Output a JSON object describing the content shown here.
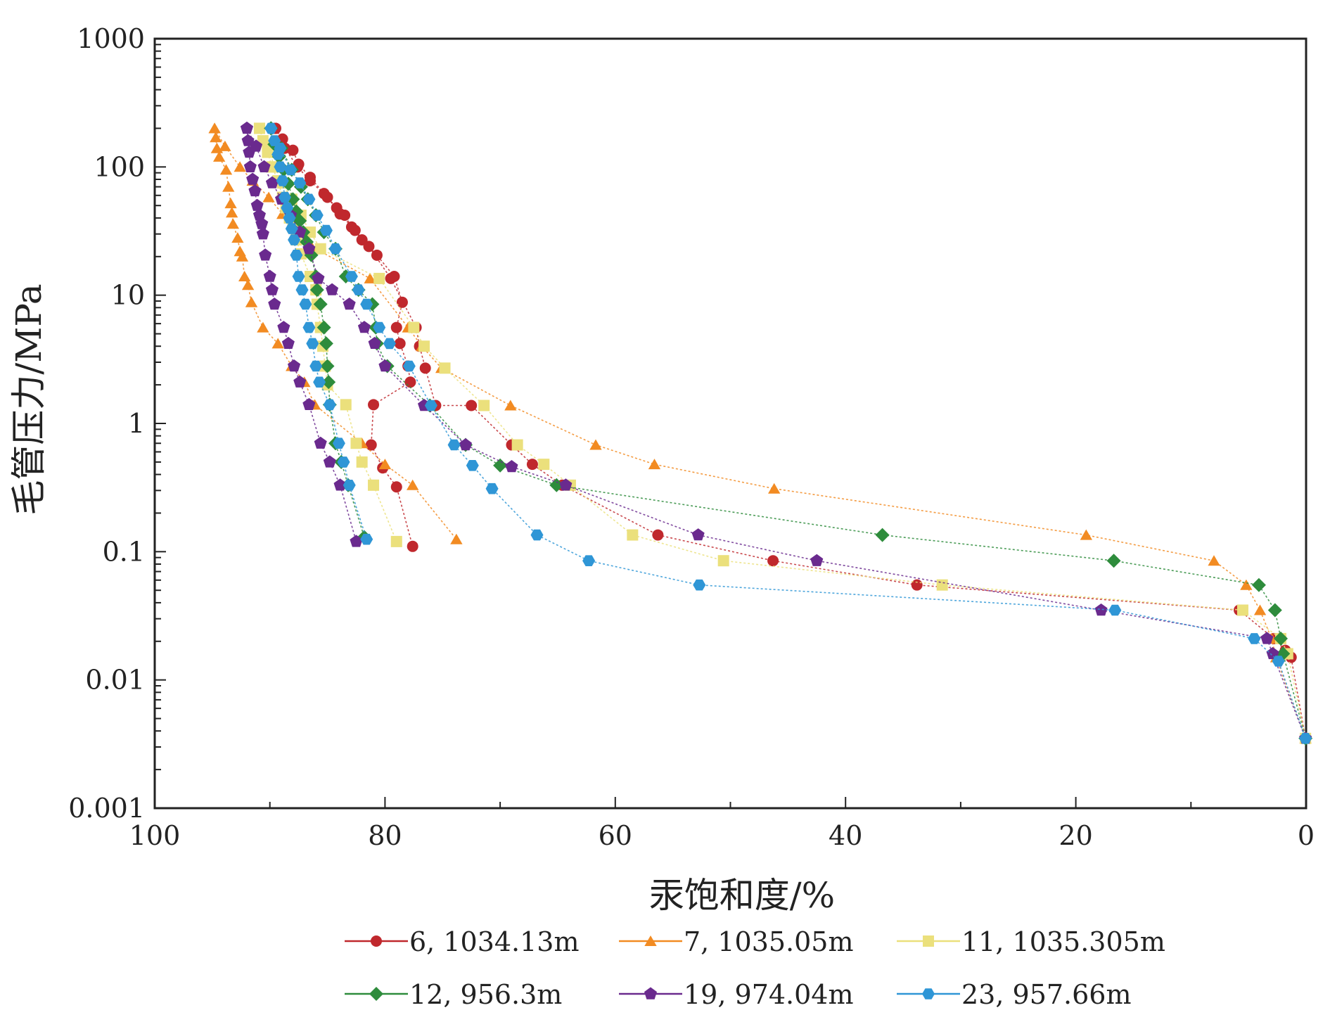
{
  "chart_data": {
    "type": "line",
    "xlabel": "汞饱和度/%",
    "ylabel": "毛管压力/MPa",
    "xlim": [
      100,
      0
    ],
    "x_reversed": true,
    "ylim": [
      0.001,
      1000
    ],
    "y_scale": "log",
    "x_ticks": [
      "100",
      "80",
      "60",
      "40",
      "20",
      "0"
    ],
    "y_ticks": [
      "1000",
      "100",
      "10",
      "1",
      "0.1",
      "0.01",
      "0.001"
    ],
    "grid": false,
    "legend_position": "bottom",
    "series": [
      {
        "name": "6, 1034.13m",
        "color": "#c0282d",
        "marker": "circle",
        "intrusion": [
          [
            89.5,
            200
          ],
          [
            88.9,
            165
          ],
          [
            88.0,
            135
          ],
          [
            87.5,
            105
          ],
          [
            86.5,
            83
          ],
          [
            85.3,
            62
          ],
          [
            84.2,
            48
          ],
          [
            83.5,
            42
          ],
          [
            82.9,
            34
          ],
          [
            82.0,
            27
          ],
          [
            80.7,
            20.5
          ],
          [
            79.2,
            14
          ],
          [
            78.5,
            8.8
          ],
          [
            79.0,
            5.6
          ],
          [
            78.7,
            4.2
          ],
          [
            78.0,
            2.8
          ],
          [
            77.8,
            2.1
          ],
          [
            81.0,
            1.4
          ],
          [
            81.2,
            0.68
          ],
          [
            80.2,
            0.45
          ],
          [
            79.0,
            0.32
          ],
          [
            77.6,
            0.11
          ]
        ],
        "extrusion": [
          [
            89.5,
            200
          ],
          [
            88.7,
            140
          ],
          [
            87.6,
            100
          ],
          [
            86.5,
            78
          ],
          [
            85.0,
            58
          ],
          [
            83.9,
            43
          ],
          [
            82.6,
            32
          ],
          [
            81.4,
            24
          ],
          [
            79.5,
            13.5
          ],
          [
            77.3,
            5.6
          ],
          [
            77.0,
            4.0
          ],
          [
            76.5,
            2.7
          ],
          [
            75.6,
            1.38
          ],
          [
            72.5,
            1.38
          ],
          [
            69.0,
            0.68
          ],
          [
            67.2,
            0.48
          ],
          [
            64.6,
            0.33
          ],
          [
            56.3,
            0.135
          ],
          [
            46.3,
            0.085
          ],
          [
            33.8,
            0.055
          ],
          [
            5.8,
            0.035
          ],
          [
            2.8,
            0.021
          ],
          [
            1.8,
            0.017
          ],
          [
            1.3,
            0.015
          ],
          [
            0.05,
            0.0035
          ]
        ]
      },
      {
        "name": "7, 1035.05m",
        "color": "#f28b22",
        "marker": "triangle",
        "intrusion": [
          [
            94.8,
            200
          ],
          [
            94.7,
            170
          ],
          [
            94.6,
            140
          ],
          [
            94.4,
            120
          ],
          [
            93.8,
            95
          ],
          [
            93.6,
            70
          ],
          [
            93.4,
            52
          ],
          [
            93.3,
            44
          ],
          [
            93.2,
            36
          ],
          [
            92.8,
            28
          ],
          [
            92.6,
            22
          ],
          [
            92.4,
            20
          ],
          [
            92.2,
            14
          ],
          [
            91.9,
            12
          ],
          [
            91.6,
            8.8
          ],
          [
            90.6,
            5.6
          ],
          [
            89.3,
            4.2
          ],
          [
            88.1,
            2.8
          ],
          [
            87.0,
            2.1
          ],
          [
            86.1,
            1.4
          ],
          [
            82.0,
            0.7
          ],
          [
            80.0,
            0.48
          ],
          [
            77.6,
            0.33
          ],
          [
            73.8,
            0.125
          ]
        ],
        "extrusion": [
          [
            94.8,
            200
          ],
          [
            93.9,
            145
          ],
          [
            92.6,
            100
          ],
          [
            91.5,
            78
          ],
          [
            90.1,
            58
          ],
          [
            88.9,
            43
          ],
          [
            87.7,
            32
          ],
          [
            86.4,
            24
          ],
          [
            81.3,
            13.5
          ],
          [
            78.0,
            5.6
          ],
          [
            76.8,
            4.0
          ],
          [
            75.1,
            2.7
          ],
          [
            69.1,
            1.38
          ],
          [
            61.7,
            0.68
          ],
          [
            56.6,
            0.48
          ],
          [
            46.2,
            0.31
          ],
          [
            19.1,
            0.135
          ],
          [
            8.0,
            0.085
          ],
          [
            5.2,
            0.055
          ],
          [
            4.0,
            0.035
          ],
          [
            3.0,
            0.021
          ],
          [
            2.6,
            0.015
          ],
          [
            0.05,
            0.0035
          ]
        ]
      },
      {
        "name": "11, 1035.305m",
        "color": "#ebe07c",
        "marker": "square",
        "intrusion": [
          [
            90.9,
            200
          ],
          [
            90.6,
            160
          ],
          [
            90.2,
            130
          ],
          [
            89.8,
            100
          ],
          [
            89.3,
            78
          ],
          [
            88.9,
            58
          ],
          [
            88.6,
            48
          ],
          [
            88.3,
            40
          ],
          [
            88.0,
            34
          ],
          [
            87.7,
            27
          ],
          [
            87.3,
            21
          ],
          [
            86.5,
            14
          ],
          [
            86.0,
            11
          ],
          [
            85.9,
            8.5
          ],
          [
            85.6,
            5.6
          ],
          [
            85.4,
            4.0
          ],
          [
            85.2,
            2.8
          ],
          [
            85.0,
            2.0
          ],
          [
            83.4,
            1.4
          ],
          [
            82.5,
            0.7
          ],
          [
            82.0,
            0.5
          ],
          [
            81.0,
            0.33
          ],
          [
            79.0,
            0.12
          ]
        ],
        "extrusion": [
          [
            90.9,
            200
          ],
          [
            90.2,
            145
          ],
          [
            89.6,
            100
          ],
          [
            88.9,
            75
          ],
          [
            88.1,
            56
          ],
          [
            87.3,
            42
          ],
          [
            86.5,
            31
          ],
          [
            85.6,
            23
          ],
          [
            80.5,
            13.5
          ],
          [
            77.5,
            5.6
          ],
          [
            76.6,
            4.0
          ],
          [
            74.8,
            2.7
          ],
          [
            71.4,
            1.38
          ],
          [
            68.5,
            0.68
          ],
          [
            66.2,
            0.48
          ],
          [
            63.9,
            0.33
          ],
          [
            58.5,
            0.135
          ],
          [
            50.6,
            0.085
          ],
          [
            31.6,
            0.055
          ],
          [
            5.5,
            0.035
          ],
          [
            2.2,
            0.021
          ],
          [
            1.6,
            0.016
          ],
          [
            0.05,
            0.0035
          ]
        ]
      },
      {
        "name": "12, 956.3m",
        "color": "#2e8c3c",
        "marker": "diamond",
        "intrusion": [
          [
            89.9,
            200
          ],
          [
            89.6,
            150
          ],
          [
            89.2,
            120
          ],
          [
            88.8,
            95
          ],
          [
            88.4,
            74
          ],
          [
            88.0,
            56
          ],
          [
            87.7,
            45
          ],
          [
            87.4,
            38
          ],
          [
            87.1,
            31
          ],
          [
            86.8,
            26
          ],
          [
            86.4,
            20.5
          ],
          [
            86.0,
            14
          ],
          [
            85.9,
            11
          ],
          [
            85.6,
            8.5
          ],
          [
            85.3,
            5.6
          ],
          [
            85.1,
            4.2
          ],
          [
            85.0,
            2.8
          ],
          [
            84.9,
            2.1
          ],
          [
            84.8,
            1.4
          ],
          [
            84.3,
            0.7
          ],
          [
            83.8,
            0.5
          ],
          [
            83.2,
            0.33
          ],
          [
            81.8,
            0.13
          ]
        ],
        "extrusion": [
          [
            89.9,
            200
          ],
          [
            89.0,
            140
          ],
          [
            88.1,
            95
          ],
          [
            87.3,
            70
          ],
          [
            86.7,
            56
          ],
          [
            86.0,
            42
          ],
          [
            85.3,
            31
          ],
          [
            84.3,
            23
          ],
          [
            83.4,
            14
          ],
          [
            82.3,
            11
          ],
          [
            81.1,
            8.5
          ],
          [
            80.8,
            5.6
          ],
          [
            80.7,
            4.2
          ],
          [
            79.8,
            2.8
          ],
          [
            76.1,
            1.38
          ],
          [
            73.0,
            0.68
          ],
          [
            70.0,
            0.47
          ],
          [
            65.1,
            0.33
          ],
          [
            36.8,
            0.135
          ],
          [
            16.7,
            0.085
          ],
          [
            4.1,
            0.055
          ],
          [
            2.7,
            0.035
          ],
          [
            2.2,
            0.021
          ],
          [
            2.0,
            0.016
          ],
          [
            0.05,
            0.0035
          ]
        ]
      },
      {
        "name": "19, 974.04m",
        "color": "#6a2a8e",
        "marker": "pentagon",
        "intrusion": [
          [
            92.0,
            200
          ],
          [
            91.9,
            160
          ],
          [
            91.8,
            130
          ],
          [
            91.7,
            100
          ],
          [
            91.5,
            80
          ],
          [
            91.3,
            65
          ],
          [
            91.1,
            50
          ],
          [
            90.9,
            42
          ],
          [
            90.7,
            36
          ],
          [
            90.6,
            30
          ],
          [
            90.4,
            20.5
          ],
          [
            90.0,
            14
          ],
          [
            89.8,
            11
          ],
          [
            89.6,
            8.5
          ],
          [
            88.8,
            5.6
          ],
          [
            88.4,
            4.2
          ],
          [
            87.9,
            2.8
          ],
          [
            87.4,
            2.1
          ],
          [
            86.6,
            1.4
          ],
          [
            85.6,
            0.7
          ],
          [
            84.8,
            0.5
          ],
          [
            83.9,
            0.33
          ],
          [
            82.5,
            0.12
          ]
        ],
        "extrusion": [
          [
            92.0,
            200
          ],
          [
            91.2,
            145
          ],
          [
            90.5,
            100
          ],
          [
            89.8,
            75
          ],
          [
            89.0,
            56
          ],
          [
            88.2,
            42
          ],
          [
            87.4,
            31
          ],
          [
            86.6,
            23
          ],
          [
            85.8,
            13.5
          ],
          [
            84.6,
            11
          ],
          [
            83.1,
            8.5
          ],
          [
            81.8,
            5.6
          ],
          [
            80.9,
            4.2
          ],
          [
            80.0,
            2.8
          ],
          [
            76.6,
            1.38
          ],
          [
            73.0,
            0.68
          ],
          [
            69.0,
            0.46
          ],
          [
            64.3,
            0.33
          ],
          [
            52.8,
            0.135
          ],
          [
            42.5,
            0.085
          ],
          [
            17.8,
            0.035
          ],
          [
            3.4,
            0.021
          ],
          [
            2.9,
            0.016
          ],
          [
            0.05,
            0.0035
          ]
        ]
      },
      {
        "name": "23, 957.66m",
        "color": "#2f96d6",
        "marker": "hexagon",
        "intrusion": [
          [
            89.9,
            200
          ],
          [
            89.6,
            160
          ],
          [
            89.3,
            125
          ],
          [
            89.1,
            100
          ],
          [
            88.9,
            78
          ],
          [
            88.7,
            58
          ],
          [
            88.5,
            48
          ],
          [
            88.3,
            40
          ],
          [
            88.1,
            33
          ],
          [
            87.9,
            27
          ],
          [
            87.7,
            20.5
          ],
          [
            87.5,
            14
          ],
          [
            87.2,
            11
          ],
          [
            86.9,
            8.5
          ],
          [
            86.6,
            5.6
          ],
          [
            86.3,
            4.2
          ],
          [
            86.0,
            2.8
          ],
          [
            85.7,
            2.1
          ],
          [
            84.8,
            1.4
          ],
          [
            84.0,
            0.7
          ],
          [
            83.6,
            0.5
          ],
          [
            83.1,
            0.33
          ],
          [
            81.6,
            0.125
          ]
        ],
        "extrusion": [
          [
            89.9,
            200
          ],
          [
            89.1,
            140
          ],
          [
            88.2,
            95
          ],
          [
            87.4,
            75
          ],
          [
            86.6,
            56
          ],
          [
            85.9,
            42
          ],
          [
            85.1,
            32
          ],
          [
            84.3,
            23
          ],
          [
            82.9,
            14
          ],
          [
            82.3,
            11
          ],
          [
            81.6,
            8.5
          ],
          [
            80.5,
            5.6
          ],
          [
            79.6,
            4.2
          ],
          [
            77.9,
            2.8
          ],
          [
            76.0,
            1.38
          ],
          [
            74.0,
            0.68
          ],
          [
            72.4,
            0.47
          ],
          [
            70.7,
            0.31
          ],
          [
            66.8,
            0.135
          ],
          [
            62.3,
            0.085
          ],
          [
            52.7,
            0.055
          ],
          [
            16.6,
            0.035
          ],
          [
            4.5,
            0.021
          ],
          [
            2.4,
            0.014
          ],
          [
            0.05,
            0.0035
          ]
        ]
      }
    ]
  }
}
